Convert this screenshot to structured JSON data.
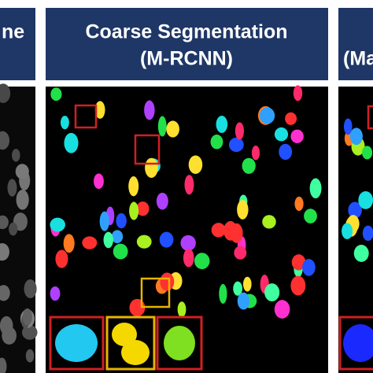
{
  "panels": [
    {
      "title": "ne"
    },
    {
      "title": "Coarse Segmentation",
      "subtitle": "(M-RCNN)"
    },
    {
      "title": "(Ma"
    }
  ]
}
